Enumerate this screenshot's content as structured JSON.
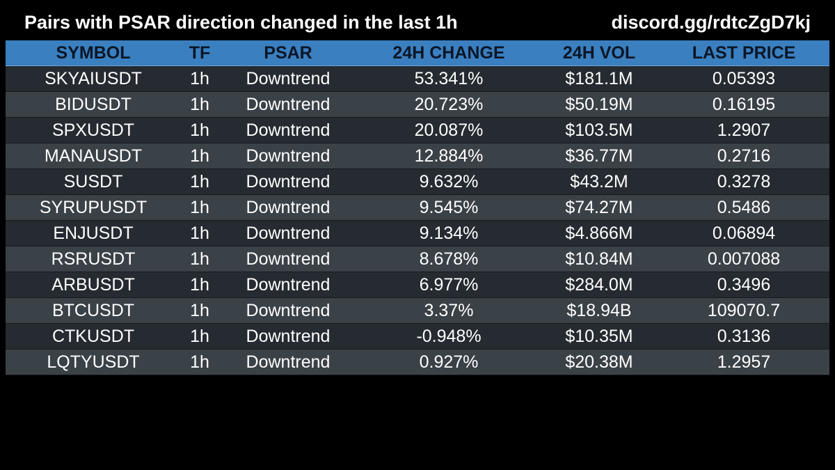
{
  "header": {
    "title": "Pairs with PSAR direction changed in the last 1h",
    "link": "discord.gg/rdtcZgD7kj"
  },
  "table": {
    "columns": [
      "SYMBOL",
      "TF",
      "PSAR",
      "24H CHANGE",
      "24H VOL",
      "LAST PRICE"
    ],
    "rows": [
      [
        "SKYAIUSDT",
        "1h",
        "Downtrend",
        "53.341%",
        "$181.1M",
        "0.05393"
      ],
      [
        "BIDUSDT",
        "1h",
        "Downtrend",
        "20.723%",
        "$50.19M",
        "0.16195"
      ],
      [
        "SPXUSDT",
        "1h",
        "Downtrend",
        "20.087%",
        "$103.5M",
        "1.2907"
      ],
      [
        "MANAUSDT",
        "1h",
        "Downtrend",
        "12.884%",
        "$36.77M",
        "0.2716"
      ],
      [
        "SUSDT",
        "1h",
        "Downtrend",
        "9.632%",
        "$43.2M",
        "0.3278"
      ],
      [
        "SYRUPUSDT",
        "1h",
        "Downtrend",
        "9.545%",
        "$74.27M",
        "0.5486"
      ],
      [
        "ENJUSDT",
        "1h",
        "Downtrend",
        "9.134%",
        "$4.866M",
        "0.06894"
      ],
      [
        "RSRUSDT",
        "1h",
        "Downtrend",
        "8.678%",
        "$10.84M",
        "0.007088"
      ],
      [
        "ARBUSDT",
        "1h",
        "Downtrend",
        "6.977%",
        "$284.0M",
        "0.3496"
      ],
      [
        "BTCUSDT",
        "1h",
        "Downtrend",
        "3.37%",
        "$18.94B",
        "109070.7"
      ],
      [
        "CTKUSDT",
        "1h",
        "Downtrend",
        "-0.948%",
        "$10.35M",
        "0.3136"
      ],
      [
        "LQTYUSDT",
        "1h",
        "Downtrend",
        "0.927%",
        "$20.38M",
        "1.2957"
      ]
    ]
  },
  "colors": {
    "background": "#000000",
    "header_row": "#3a7fbf",
    "row_dark": "#252b31",
    "row_light": "#3a4147",
    "text": "#ffffff"
  }
}
